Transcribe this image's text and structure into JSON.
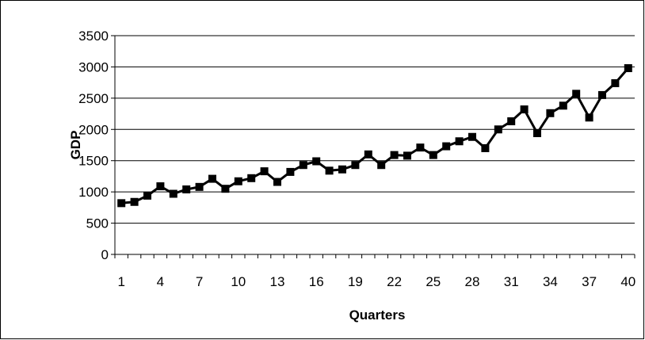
{
  "chart_data": {
    "type": "line",
    "title": "",
    "xlabel": "Quarters",
    "ylabel": "GDP",
    "ylim": [
      0,
      3500
    ],
    "yticks": [
      0,
      500,
      1000,
      1500,
      2000,
      2500,
      3000,
      3500
    ],
    "x": [
      1,
      2,
      3,
      4,
      5,
      6,
      7,
      8,
      9,
      10,
      11,
      12,
      13,
      14,
      15,
      16,
      17,
      18,
      19,
      20,
      21,
      22,
      23,
      24,
      25,
      26,
      27,
      28,
      29,
      30,
      31,
      32,
      33,
      34,
      35,
      36,
      37,
      38,
      39,
      40
    ],
    "x_tick_labels": [
      "1",
      "4",
      "7",
      "10",
      "13",
      "16",
      "19",
      "22",
      "25",
      "28",
      "31",
      "34",
      "37",
      "40"
    ],
    "grid": "horizontal",
    "line_color": "#000000",
    "marker": "square",
    "series": [
      {
        "values": [
          820,
          840,
          940,
          1090,
          970,
          1040,
          1080,
          1210,
          1050,
          1170,
          1220,
          1330,
          1160,
          1320,
          1430,
          1490,
          1340,
          1360,
          1430,
          1600,
          1430,
          1590,
          1580,
          1710,
          1590,
          1730,
          1810,
          1880,
          1700,
          2000,
          2130,
          2320,
          1940,
          2260,
          2380,
          2570,
          2190,
          2550,
          2740,
          2980
        ]
      }
    ]
  }
}
